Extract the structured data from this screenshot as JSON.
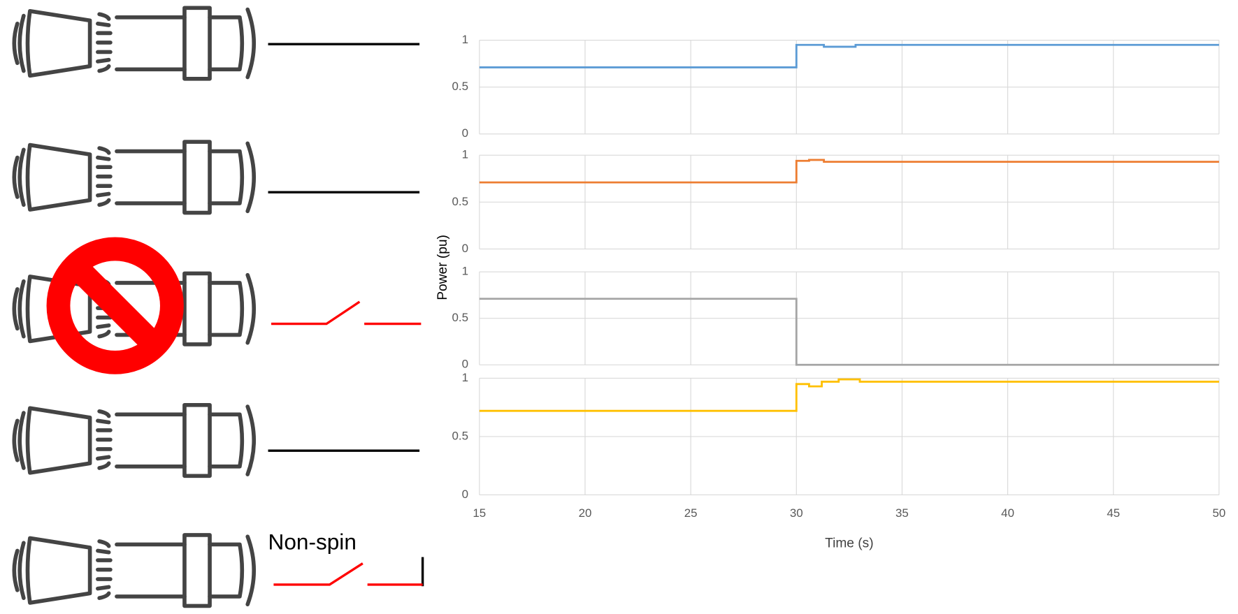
{
  "annotations": [
    "Non-spin"
  ],
  "chart_data": [
    {
      "type": "line",
      "x": [
        15,
        30,
        30,
        31.3,
        31.3,
        32.8,
        32.8,
        50
      ],
      "values": [
        0.71,
        0.71,
        0.95,
        0.95,
        0.93,
        0.93,
        0.95,
        0.95
      ],
      "color": "#5b9bd5",
      "xlim": [
        15,
        50
      ],
      "xticks": [
        15,
        20,
        25,
        30,
        35,
        40,
        45,
        50
      ],
      "ylim": [
        0,
        1
      ],
      "yticks": [
        0,
        0.5,
        1
      ],
      "grid": true
    },
    {
      "type": "line",
      "x": [
        15,
        30,
        30,
        30.6,
        30.6,
        31.3,
        31.3,
        50
      ],
      "values": [
        0.71,
        0.71,
        0.94,
        0.94,
        0.95,
        0.95,
        0.93,
        0.93
      ],
      "color": "#ed7d31",
      "xlim": [
        15,
        50
      ],
      "xticks": [
        15,
        20,
        25,
        30,
        35,
        40,
        45,
        50
      ],
      "ylim": [
        0,
        1
      ],
      "yticks": [
        0,
        0.5,
        1
      ],
      "grid": true
    },
    {
      "type": "line",
      "x": [
        15,
        30,
        30,
        50
      ],
      "values": [
        0.71,
        0.71,
        0,
        0
      ],
      "color": "#a5a5a5",
      "ylabel": "Power (pu)",
      "xlim": [
        15,
        50
      ],
      "xticks": [
        15,
        20,
        25,
        30,
        35,
        40,
        45,
        50
      ],
      "ylim": [
        0,
        1
      ],
      "yticks": [
        0,
        0.5,
        1
      ],
      "grid": true
    },
    {
      "type": "line",
      "x": [
        15,
        30,
        30,
        30.6,
        30.6,
        31.2,
        31.2,
        32,
        32,
        33,
        33,
        50
      ],
      "values": [
        0.72,
        0.72,
        0.95,
        0.95,
        0.93,
        0.93,
        0.97,
        0.97,
        0.99,
        0.99,
        0.97,
        0.97
      ],
      "color": "#ffc000",
      "xlabel": "Time (s)",
      "xlim": [
        15,
        50
      ],
      "xticks": [
        15,
        20,
        25,
        30,
        35,
        40,
        45,
        50
      ],
      "ylim": [
        0,
        1
      ],
      "yticks": [
        0,
        0.5,
        1
      ],
      "grid": true
    }
  ]
}
